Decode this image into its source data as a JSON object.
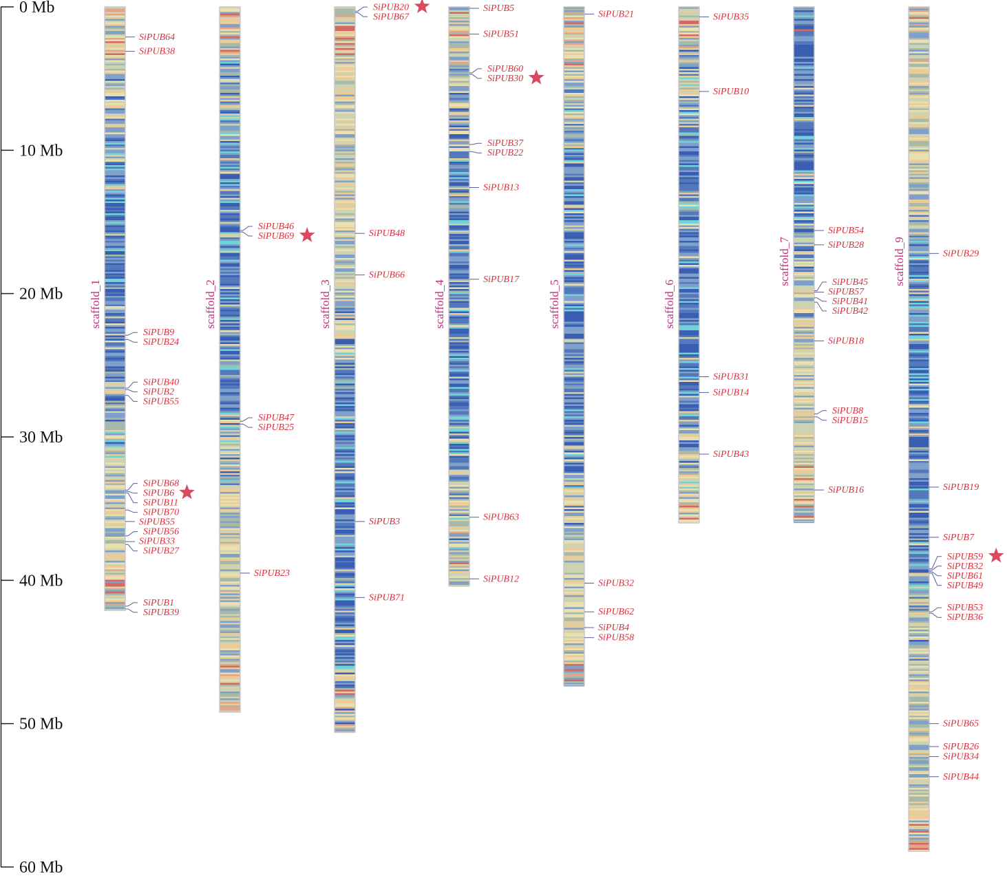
{
  "axis": {
    "unit": "Mb",
    "max": 60,
    "step": 10,
    "ticks": [
      "0 Mb",
      "10 Mb",
      "20 Mb",
      "30 Mb",
      "40 Mb",
      "50 Mb",
      "60 Mb"
    ]
  },
  "colors": {
    "gene_label": "#d8323e",
    "scaffold_label": "#c2307c",
    "connector": "#5c5c9c",
    "star": "#d84a5e",
    "density_palette": [
      "#3a5fb2",
      "#5478bc",
      "#7fa0c8",
      "#6fd3d8",
      "#a9b9a8",
      "#cdd3b0",
      "#e9dfb0",
      "#eacb9a",
      "#e3a585",
      "#d06a62"
    ]
  },
  "scaffolds": [
    {
      "name": "scaffold_1",
      "length_mb": 42.1,
      "dense_region_mb": [
        10,
        26
      ],
      "genes": [
        [
          "SiPUB64",
          2.1
        ],
        [
          "SiPUB38",
          3.1
        ],
        [
          "SiPUB9",
          22.9
        ],
        [
          "SiPUB24",
          23.2
        ],
        [
          "SiPUB40",
          26.6
        ],
        [
          "SiPUB2",
          26.7
        ],
        [
          "SiPUB55",
          27.1
        ],
        [
          "SiPUB68",
          33.7
        ],
        [
          "SiPUB6",
          33.8
        ],
        [
          "SiPUB11",
          33.9
        ],
        [
          "SiPUB70",
          35.1
        ],
        [
          "SiPUB55",
          35.9
        ],
        [
          "SiPUB56",
          36.9
        ],
        [
          "SiPUB33",
          37.3
        ],
        [
          "SiPUB27",
          37.5
        ],
        [
          "SiPUB1",
          41.8
        ],
        [
          "SiPUB39",
          42.0
        ]
      ],
      "starred": [
        "SiPUB6"
      ]
    },
    {
      "name": "scaffold_2",
      "length_mb": 49.2,
      "dense_region_mb": [
        9,
        28
      ],
      "genes": [
        [
          "SiPUB46",
          15.6
        ],
        [
          "SiPUB69",
          15.7
        ],
        [
          "SiPUB47",
          28.9
        ],
        [
          "SiPUB25",
          29.1
        ],
        [
          "SiPUB23",
          39.5
        ]
      ],
      "starred": [
        "SiPUB69"
      ]
    },
    {
      "name": "scaffold_3",
      "length_mb": 50.6,
      "dense_region_mb": [
        26,
        46
      ],
      "genes": [
        [
          "SiPUB20",
          0.3
        ],
        [
          "SiPUB67",
          0.4
        ],
        [
          "SiPUB48",
          15.8
        ],
        [
          "SiPUB66",
          18.7
        ],
        [
          "SiPUB3",
          35.9
        ],
        [
          "SiPUB71",
          41.2
        ]
      ],
      "starred": [
        "SiPUB20"
      ]
    },
    {
      "name": "scaffold_4",
      "length_mb": 40.4,
      "dense_region_mb": [
        10,
        32
      ],
      "genes": [
        [
          "SiPUB5",
          0.1
        ],
        [
          "SiPUB51",
          1.9
        ],
        [
          "SiPUB60",
          4.6
        ],
        [
          "SiPUB30",
          4.7
        ],
        [
          "SiPUB37",
          9.6
        ],
        [
          "SiPUB22",
          10.1
        ],
        [
          "SiPUB13",
          12.6
        ],
        [
          "SiPUB17",
          19.0
        ],
        [
          "SiPUB63",
          35.6
        ],
        [
          "SiPUB12",
          39.9
        ]
      ],
      "starred": [
        "SiPUB30"
      ]
    },
    {
      "name": "scaffold_5",
      "length_mb": 47.3,
      "dense_region_mb": [
        10,
        30
      ],
      "genes": [
        [
          "SiPUB21",
          0.5
        ],
        [
          "SiPUB32",
          40.2
        ],
        [
          "SiPUB62",
          42.2
        ],
        [
          "SiPUB4",
          43.3
        ],
        [
          "SiPUB58",
          44.0
        ]
      ],
      "starred": []
    },
    {
      "name": "scaffold_6",
      "length_mb": 36.0,
      "dense_region_mb": [
        8,
        28
      ],
      "genes": [
        [
          "SiPUB35",
          0.7
        ],
        [
          "SiPUB10",
          5.9
        ],
        [
          "SiPUB31",
          25.8
        ],
        [
          "SiPUB14",
          26.9
        ],
        [
          "SiPUB43",
          31.2
        ]
      ],
      "starred": []
    },
    {
      "name": "scaffold_7",
      "length_mb": 35.9,
      "dense_region_mb": [
        0,
        16
      ],
      "genes": [
        [
          "SiPUB54",
          15.6
        ],
        [
          "SiPUB28",
          16.6
        ],
        [
          "SiPUB45",
          19.8
        ],
        [
          "SiPUB57",
          19.9
        ],
        [
          "SiPUB41",
          20.3
        ],
        [
          "SiPUB42",
          20.6
        ],
        [
          "SiPUB18",
          23.3
        ],
        [
          "SiPUB8",
          28.4
        ],
        [
          "SiPUB15",
          28.6
        ],
        [
          "SiPUB16",
          33.7
        ]
      ],
      "starred": []
    },
    {
      "name": "scaffold_9",
      "length_mb": 58.9,
      "dense_region_mb": [
        18,
        40
      ],
      "genes": [
        [
          "SiPUB29",
          17.2
        ],
        [
          "SiPUB19",
          33.5
        ],
        [
          "SiPUB7",
          37.0
        ],
        [
          "SiPUB59",
          39.2
        ],
        [
          "SiPUB32",
          39.3
        ],
        [
          "SiPUB61",
          39.4
        ],
        [
          "SiPUB49",
          39.5
        ],
        [
          "SiPUB53",
          42.2
        ],
        [
          "SiPUB36",
          42.3
        ],
        [
          "SiPUB65",
          50.0
        ],
        [
          "SiPUB26",
          51.6
        ],
        [
          "SiPUB34",
          52.3
        ],
        [
          "SiPUB44",
          53.7
        ]
      ],
      "starred": [
        "SiPUB59"
      ]
    }
  ]
}
